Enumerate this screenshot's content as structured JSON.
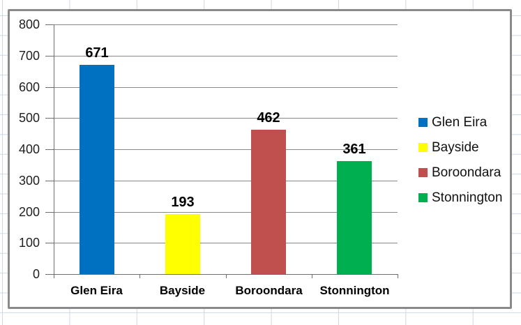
{
  "chart_data": {
    "type": "bar",
    "title": "",
    "xlabel": "",
    "ylabel": "",
    "categories": [
      "Glen Eira",
      "Bayside",
      "Boroondara",
      "Stonnington"
    ],
    "values": [
      671,
      193,
      462,
      361
    ],
    "colors": [
      "#0070C0",
      "#FFFF00",
      "#C0504D",
      "#00B050"
    ],
    "y_ticks": [
      0,
      100,
      200,
      300,
      400,
      500,
      600,
      700,
      800
    ],
    "ylim": [
      0,
      800
    ],
    "grid": true,
    "gridline_color": "#898989",
    "axis_color": "#6e6e6e",
    "legend_position": "right",
    "legend": [
      {
        "label": "Glen Eira",
        "color": "#0070C0"
      },
      {
        "label": "Bayside",
        "color": "#FFFF00"
      },
      {
        "label": "Boroondara",
        "color": "#C0504D"
      },
      {
        "label": "Stonnington",
        "color": "#00B050"
      }
    ]
  }
}
